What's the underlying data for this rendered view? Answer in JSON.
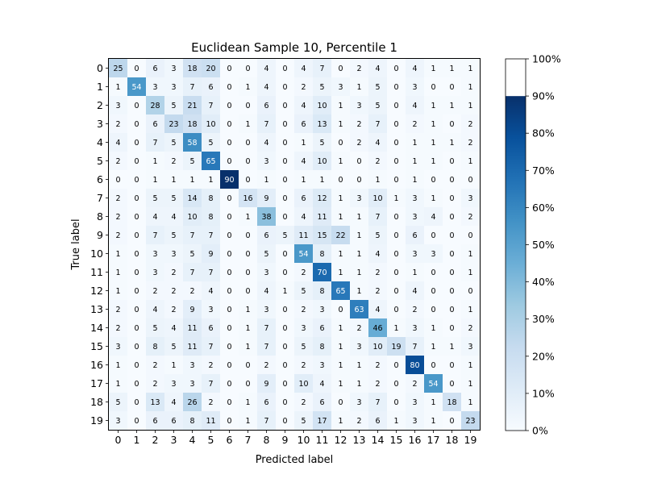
{
  "chart_data": {
    "type": "heatmap",
    "title": "Euclidean Sample 10, Percentile 1",
    "xlabel": "Predicted label",
    "ylabel": "True label",
    "x_tick_labels": [
      "0",
      "1",
      "2",
      "3",
      "4",
      "5",
      "6",
      "7",
      "8",
      "9",
      "10",
      "11",
      "12",
      "13",
      "14",
      "15",
      "16",
      "17",
      "18",
      "19"
    ],
    "y_tick_labels": [
      "0",
      "1",
      "2",
      "3",
      "4",
      "5",
      "6",
      "7",
      "8",
      "9",
      "10",
      "11",
      "12",
      "13",
      "14",
      "15",
      "16",
      "17",
      "18",
      "19"
    ],
    "matrix": [
      [
        25,
        0,
        6,
        3,
        18,
        20,
        0,
        0,
        4,
        0,
        4,
        7,
        0,
        2,
        4,
        0,
        4,
        1,
        1,
        1
      ],
      [
        1,
        54,
        3,
        3,
        7,
        6,
        0,
        1,
        4,
        0,
        2,
        5,
        3,
        1,
        5,
        0,
        3,
        0,
        0,
        1
      ],
      [
        3,
        0,
        28,
        5,
        21,
        7,
        0,
        0,
        6,
        0,
        4,
        10,
        1,
        3,
        5,
        0,
        4,
        1,
        1,
        1
      ],
      [
        2,
        0,
        6,
        23,
        18,
        10,
        0,
        1,
        7,
        0,
        6,
        13,
        1,
        2,
        7,
        0,
        2,
        1,
        0,
        2
      ],
      [
        4,
        0,
        7,
        5,
        58,
        5,
        0,
        0,
        4,
        0,
        1,
        5,
        0,
        2,
        4,
        0,
        1,
        1,
        1,
        2
      ],
      [
        2,
        0,
        1,
        2,
        5,
        65,
        0,
        0,
        3,
        0,
        4,
        10,
        1,
        0,
        2,
        0,
        1,
        1,
        0,
        1
      ],
      [
        0,
        0,
        1,
        1,
        1,
        1,
        90,
        0,
        1,
        0,
        1,
        1,
        0,
        0,
        1,
        0,
        1,
        0,
        0,
        0
      ],
      [
        2,
        0,
        5,
        5,
        14,
        8,
        0,
        16,
        9,
        0,
        6,
        12,
        1,
        3,
        10,
        1,
        3,
        1,
        0,
        3
      ],
      [
        2,
        0,
        4,
        4,
        10,
        8,
        0,
        1,
        38,
        0,
        4,
        11,
        1,
        1,
        7,
        0,
        3,
        4,
        0,
        2
      ],
      [
        2,
        0,
        7,
        5,
        7,
        7,
        0,
        0,
        6,
        5,
        11,
        15,
        22,
        1,
        5,
        0,
        6,
        0,
        0,
        0
      ],
      [
        1,
        0,
        3,
        3,
        5,
        9,
        0,
        0,
        5,
        0,
        54,
        8,
        1,
        1,
        4,
        0,
        3,
        3,
        0,
        1
      ],
      [
        1,
        0,
        3,
        2,
        7,
        7,
        0,
        0,
        3,
        0,
        2,
        70,
        1,
        1,
        2,
        0,
        1,
        0,
        0,
        1
      ],
      [
        1,
        0,
        2,
        2,
        2,
        4,
        0,
        0,
        4,
        1,
        5,
        8,
        65,
        1,
        2,
        0,
        4,
        0,
        0,
        0
      ],
      [
        2,
        0,
        4,
        2,
        9,
        3,
        0,
        1,
        3,
        0,
        2,
        3,
        0,
        63,
        4,
        0,
        2,
        0,
        0,
        1
      ],
      [
        2,
        0,
        5,
        4,
        11,
        6,
        0,
        1,
        7,
        0,
        3,
        6,
        1,
        2,
        46,
        1,
        3,
        1,
        0,
        2
      ],
      [
        3,
        0,
        8,
        5,
        11,
        7,
        0,
        1,
        7,
        0,
        5,
        8,
        1,
        3,
        10,
        19,
        7,
        1,
        1,
        3
      ],
      [
        1,
        0,
        2,
        1,
        3,
        2,
        0,
        0,
        2,
        0,
        2,
        3,
        1,
        1,
        2,
        0,
        80,
        0,
        0,
        1
      ],
      [
        1,
        0,
        2,
        3,
        3,
        7,
        0,
        0,
        9,
        0,
        10,
        4,
        1,
        1,
        2,
        0,
        2,
        54,
        0,
        1
      ],
      [
        5,
        0,
        13,
        4,
        26,
        2,
        0,
        1,
        6,
        0,
        2,
        6,
        0,
        3,
        7,
        0,
        3,
        1,
        18,
        1
      ],
      [
        3,
        0,
        6,
        6,
        8,
        11,
        0,
        1,
        7,
        0,
        5,
        17,
        1,
        2,
        6,
        1,
        3,
        1,
        0,
        23
      ]
    ],
    "colorbar": {
      "colormap": "Blues",
      "range": [
        0,
        90
      ],
      "tick_values": [
        0,
        10,
        20,
        30,
        40,
        50,
        60,
        70,
        80,
        90,
        100
      ],
      "tick_labels": [
        "0%",
        "10%",
        "20%",
        "30%",
        "40%",
        "50%",
        "60%",
        "70%",
        "80%",
        "90%",
        "100%"
      ]
    },
    "grid": false
  }
}
